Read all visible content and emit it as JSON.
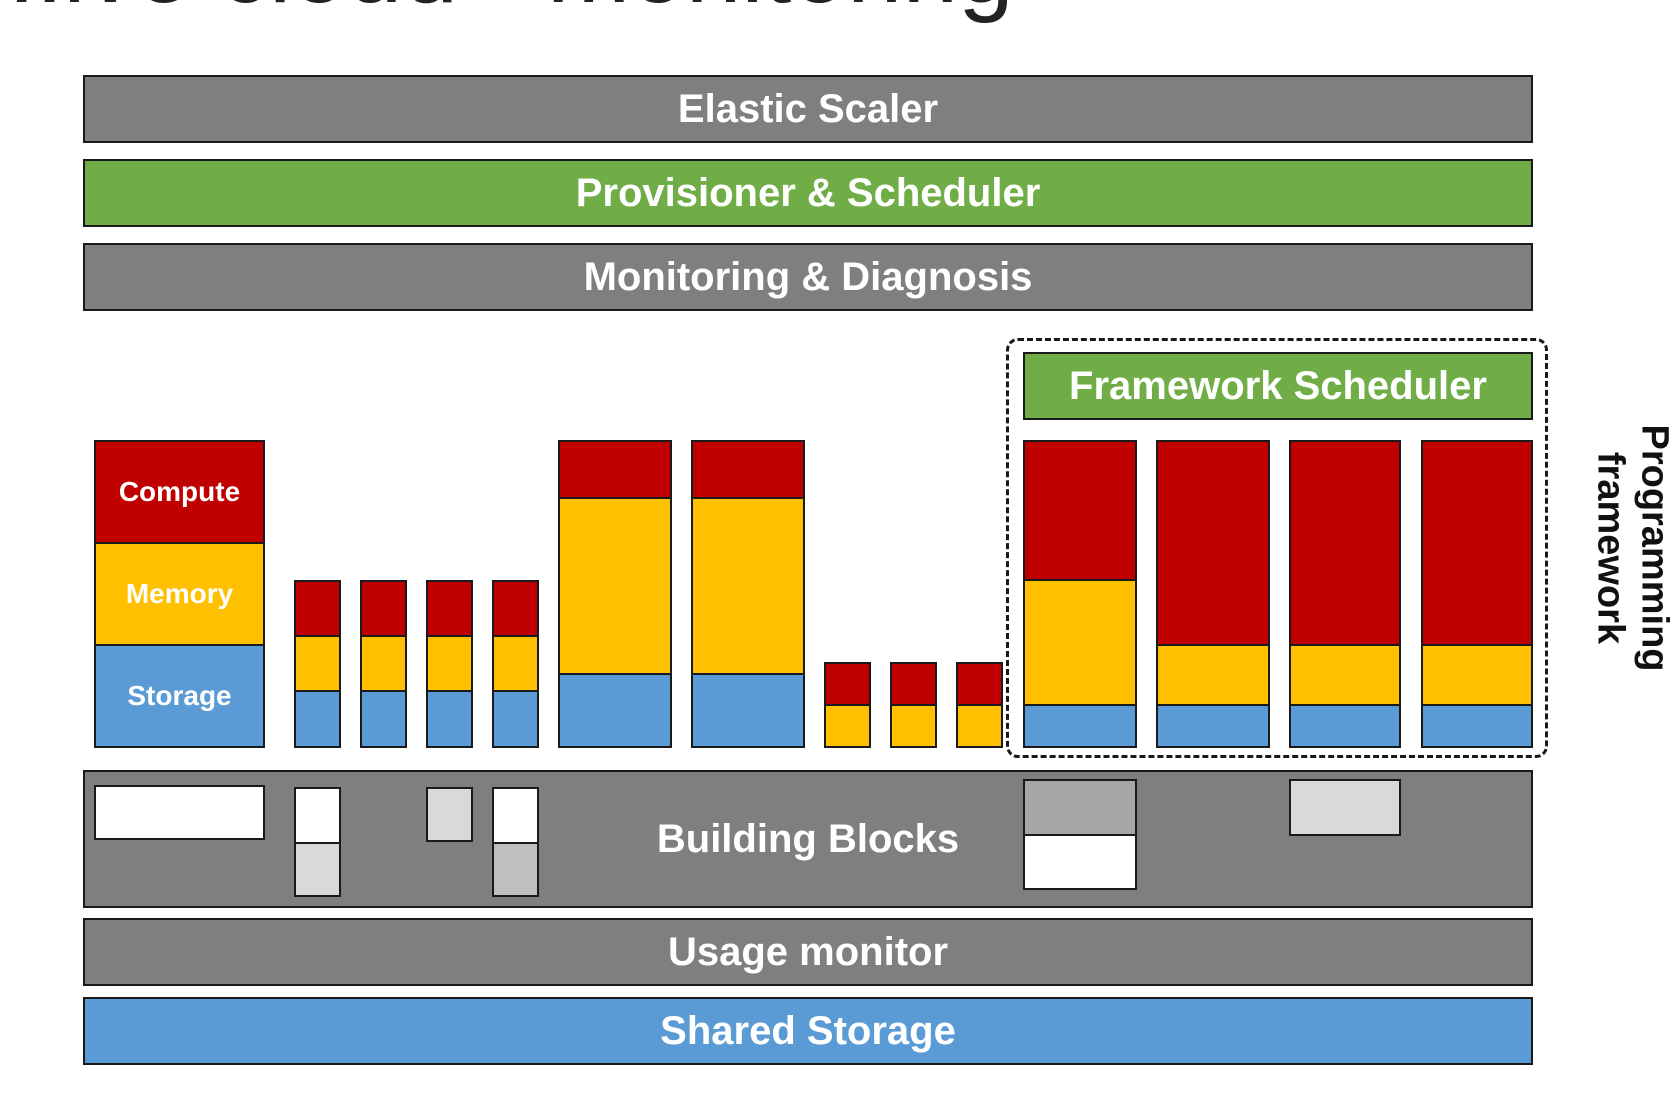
{
  "header": {
    "title_fragment": "...ive cloud - monitoring"
  },
  "layers": {
    "elastic_scaler": "Elastic Scaler",
    "provisioner_scheduler": "Provisioner & Scheduler",
    "monitoring_diagnosis": "Monitoring & Diagnosis",
    "building_blocks": "Building Blocks",
    "usage_monitor": "Usage monitor",
    "shared_storage": "Shared Storage"
  },
  "framework": {
    "scheduler": "Framework Scheduler",
    "side_label_line1": "Programming",
    "side_label_line2": "framework"
  },
  "resource_legend": {
    "compute": "Compute",
    "memory": "Memory",
    "storage": "Storage"
  },
  "colors": {
    "gray": "#7f7f7f",
    "green": "#70ad47",
    "blue": "#5b9bd5",
    "red": "#c00000",
    "yellow": "#ffc000"
  }
}
